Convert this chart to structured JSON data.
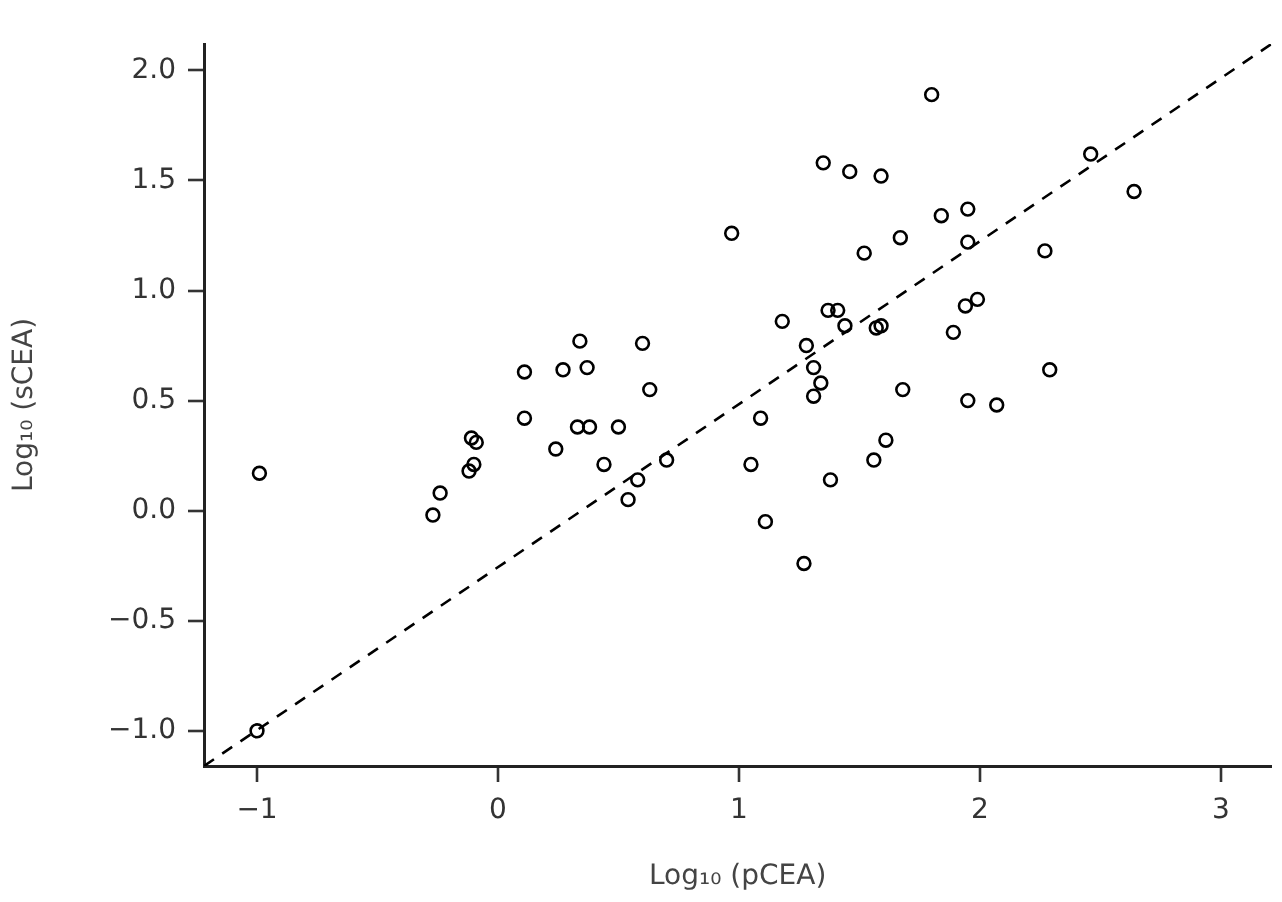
{
  "chart_data": {
    "type": "scatter",
    "xlabel": "Log₁₀ (pCEA)",
    "ylabel": "Log₁₀ (sCEA)",
    "xlim": [
      -1.22,
      3.21
    ],
    "ylim": [
      -1.16,
      2.12
    ],
    "xticks": [
      -1,
      0,
      1,
      2,
      3
    ],
    "yticks": [
      {
        "value": 2,
        "label": "2.0"
      },
      {
        "value": 1.5,
        "label": "1.5"
      },
      {
        "value": 1,
        "label": "1.0"
      },
      {
        "value": 0.5,
        "label": "0.5"
      },
      {
        "value": 0,
        "label": "0.0"
      },
      {
        "value": -0.5,
        "label": "−0.5"
      },
      {
        "value": -1,
        "label": "−1.0"
      }
    ],
    "grid": false,
    "legend": false,
    "marker": "circle",
    "series": [
      {
        "type": "scatter",
        "color": "#000000",
        "x": [
          0.34,
          0.6,
          0.11,
          0.27,
          0.37,
          0.63,
          0.11,
          0.33,
          0.38,
          0.5,
          1.8,
          1.35,
          1.46,
          1.59,
          2.46,
          2.64,
          0.97,
          1.84,
          1.95,
          1.95,
          1.67,
          1.52,
          2.27,
          1.18,
          1.37,
          1.41,
          1.44,
          1.57,
          1.59,
          1.94,
          1.99,
          1.89,
          1.28,
          1.31,
          1.34,
          1.31,
          1.68,
          2.29,
          1.95,
          2.07,
          1.09,
          1.61,
          -0.99,
          -0.27,
          -0.24,
          -0.11,
          -0.09,
          -0.1,
          -0.12,
          0.24,
          0.44,
          0.58,
          0.54,
          0.7,
          -1,
          1.05,
          1.38,
          1.56,
          1.11,
          1.27
        ],
        "values": [
          0.77,
          0.76,
          0.63,
          0.64,
          0.65,
          0.55,
          0.42,
          0.38,
          0.38,
          0.38,
          1.89,
          1.58,
          1.54,
          1.52,
          1.62,
          1.45,
          1.26,
          1.34,
          1.37,
          1.22,
          1.24,
          1.17,
          1.18,
          0.86,
          0.91,
          0.91,
          0.84,
          0.83,
          0.84,
          0.93,
          0.96,
          0.81,
          0.75,
          0.65,
          0.58,
          0.52,
          0.55,
          0.64,
          0.5,
          0.48,
          0.42,
          0.32,
          0.17,
          -0.02,
          0.08,
          0.33,
          0.31,
          0.21,
          0.18,
          0.28,
          0.21,
          0.14,
          0.05,
          0.23,
          -1,
          0.21,
          0.14,
          0.23,
          -0.05,
          -0.24
        ]
      },
      {
        "type": "line",
        "color": "#000000",
        "line_style": "dashed",
        "marker": "none",
        "x": [
          -1.22,
          3.21
        ],
        "values": [
          -1.16,
          2.12
        ]
      }
    ]
  }
}
